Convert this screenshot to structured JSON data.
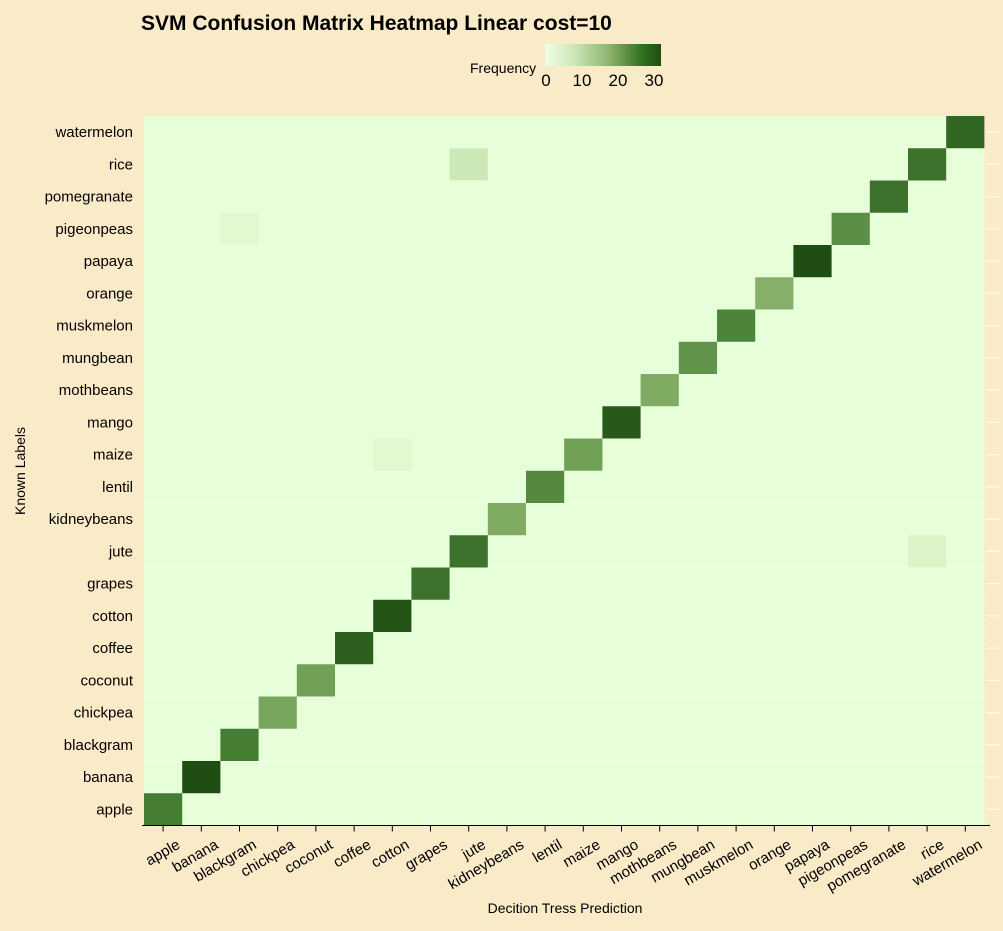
{
  "chart_data": {
    "type": "heatmap",
    "title": "SVM Confusion Matrix Heatmap Linear cost=10",
    "xlabel": "Decition Tress Prediction",
    "ylabel": "Known Labels",
    "legend": {
      "title": "Frequency",
      "ticks": [
        "0",
        "10",
        "20",
        "30"
      ],
      "range": [
        0,
        32
      ],
      "position": "top",
      "low_color": "#e6ffd8",
      "high_color": "#1f4d12"
    },
    "x_categories": [
      "apple",
      "banana",
      "blackgram",
      "chickpea",
      "coconut",
      "coffee",
      "cotton",
      "grapes",
      "jute",
      "kidneybeans",
      "lentil",
      "maize",
      "mango",
      "mothbeans",
      "mungbean",
      "muskmelon",
      "orange",
      "papaya",
      "pigeonpeas",
      "pomegranate",
      "rice",
      "watermelon"
    ],
    "y_categories": [
      "apple",
      "banana",
      "blackgram",
      "chickpea",
      "coconut",
      "coffee",
      "cotton",
      "grapes",
      "jute",
      "kidneybeans",
      "lentil",
      "maize",
      "mango",
      "mothbeans",
      "mungbean",
      "muskmelon",
      "orange",
      "papaya",
      "pigeonpeas",
      "pomegranate",
      "rice",
      "watermelon"
    ],
    "cells": [
      {
        "known": "apple",
        "predicted": "apple",
        "value": 24
      },
      {
        "known": "banana",
        "predicted": "banana",
        "value": 32
      },
      {
        "known": "blackgram",
        "predicted": "blackgram",
        "value": 24
      },
      {
        "known": "chickpea",
        "predicted": "chickpea",
        "value": 17
      },
      {
        "known": "coconut",
        "predicted": "coconut",
        "value": 18
      },
      {
        "known": "coffee",
        "predicted": "coffee",
        "value": 29
      },
      {
        "known": "cotton",
        "predicted": "cotton",
        "value": 31
      },
      {
        "known": "grapes",
        "predicted": "grapes",
        "value": 26
      },
      {
        "known": "jute",
        "predicted": "jute",
        "value": 26
      },
      {
        "known": "jute",
        "predicted": "rice",
        "value": 2
      },
      {
        "known": "kidneybeans",
        "predicted": "kidneybeans",
        "value": 16
      },
      {
        "known": "lentil",
        "predicted": "lentil",
        "value": 22
      },
      {
        "known": "maize",
        "predicted": "maize",
        "value": 18
      },
      {
        "known": "maize",
        "predicted": "cotton",
        "value": 1
      },
      {
        "known": "mango",
        "predicted": "mango",
        "value": 30
      },
      {
        "known": "mothbeans",
        "predicted": "mothbeans",
        "value": 16
      },
      {
        "known": "mungbean",
        "predicted": "mungbean",
        "value": 20
      },
      {
        "known": "muskmelon",
        "predicted": "muskmelon",
        "value": 23
      },
      {
        "known": "orange",
        "predicted": "orange",
        "value": 15
      },
      {
        "known": "papaya",
        "predicted": "papaya",
        "value": 32
      },
      {
        "known": "pigeonpeas",
        "predicted": "pigeonpeas",
        "value": 21
      },
      {
        "known": "pigeonpeas",
        "predicted": "blackgram",
        "value": 1
      },
      {
        "known": "pomegranate",
        "predicted": "pomegranate",
        "value": 26
      },
      {
        "known": "rice",
        "predicted": "rice",
        "value": 26
      },
      {
        "known": "rice",
        "predicted": "jute",
        "value": 4
      },
      {
        "known": "watermelon",
        "predicted": "watermelon",
        "value": 28
      }
    ],
    "background_color": "#faebc8"
  }
}
